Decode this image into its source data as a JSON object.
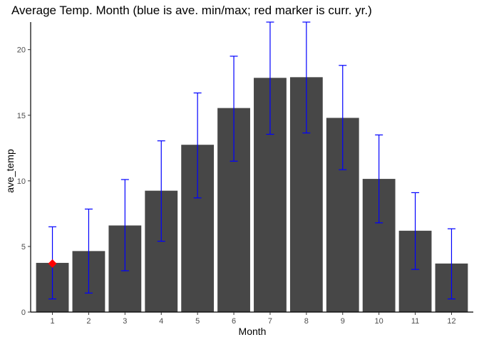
{
  "chart_data": {
    "type": "bar",
    "title": "Average Temp. Month (blue is ave. min/max; red marker is curr. yr.)",
    "xlabel": "Month",
    "ylabel": "ave_temp",
    "categories": [
      "1",
      "2",
      "3",
      "4",
      "5",
      "6",
      "7",
      "8",
      "9",
      "10",
      "11",
      "12"
    ],
    "values": [
      3.75,
      4.65,
      6.6,
      9.25,
      12.75,
      15.55,
      17.85,
      17.9,
      14.8,
      10.15,
      6.2,
      3.7
    ],
    "error_min": [
      1.0,
      1.45,
      3.15,
      5.4,
      8.7,
      11.5,
      13.55,
      13.65,
      10.85,
      6.8,
      3.25,
      1.0
    ],
    "error_max": [
      6.5,
      7.85,
      10.1,
      13.05,
      16.7,
      19.5,
      22.1,
      22.1,
      18.8,
      13.5,
      9.1,
      6.35
    ],
    "current_year_markers": [
      {
        "category": "1",
        "value": 3.7
      }
    ],
    "ylim": [
      0,
      22.1
    ],
    "yticks": [
      0,
      5,
      10,
      15,
      20
    ],
    "grid": false,
    "colors": {
      "bar": "#474747",
      "errorbar": "#0000ff",
      "marker": "#ff0000",
      "axis": "#000000",
      "tick_text": "#4d4d4d"
    }
  }
}
